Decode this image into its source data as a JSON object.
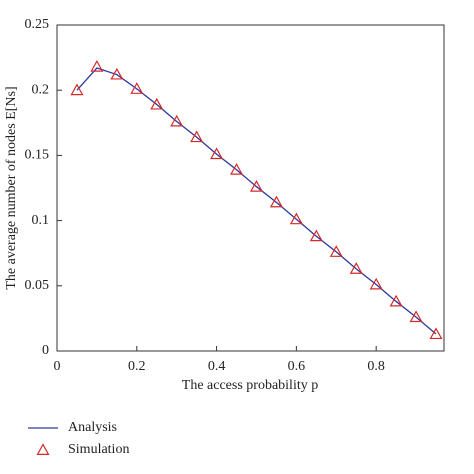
{
  "chart_data": {
    "type": "line",
    "xlabel": "The access probability p",
    "ylabel": "The average number of nodes E[Ns]",
    "x": [
      0.05,
      0.1,
      0.15,
      0.2,
      0.25,
      0.3,
      0.35,
      0.4,
      0.45,
      0.5,
      0.55,
      0.6,
      0.65,
      0.7,
      0.75,
      0.8,
      0.85,
      0.9,
      0.95
    ],
    "series": [
      {
        "name": "Analysis",
        "color": "#2b3a9c",
        "marker": "none",
        "values": [
          0.2,
          0.217,
          0.212,
          0.201,
          0.189,
          0.176,
          0.164,
          0.151,
          0.139,
          0.126,
          0.114,
          0.101,
          0.088,
          0.076,
          0.063,
          0.051,
          0.038,
          0.026,
          0.013
        ]
      },
      {
        "name": "Simulation",
        "color": "#d42a2a",
        "marker": "triangle",
        "values": [
          0.2,
          0.218,
          0.212,
          0.201,
          0.189,
          0.176,
          0.164,
          0.151,
          0.139,
          0.126,
          0.114,
          0.101,
          0.088,
          0.076,
          0.063,
          0.051,
          0.038,
          0.026,
          0.013
        ]
      }
    ],
    "xlim": [
      0,
      0.97
    ],
    "ylim": [
      0,
      0.25
    ],
    "xticks": [
      0,
      0.2,
      0.4,
      0.6,
      0.8
    ],
    "yticks": [
      0,
      0.05,
      0.1,
      0.15,
      0.2,
      0.25
    ],
    "grid": false,
    "legend": "bottom"
  }
}
